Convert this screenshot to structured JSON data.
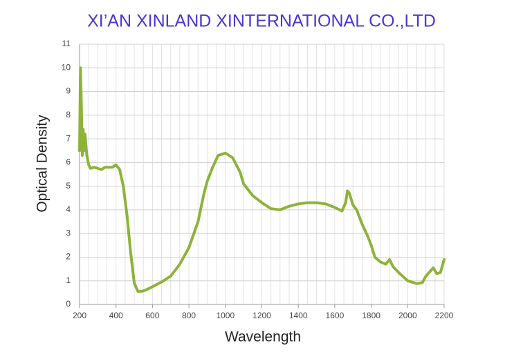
{
  "chart_data": {
    "type": "line",
    "title": "XI’AN XINLAND XINTERNATIONAL CO.,LTD",
    "x_label": "Wavelength",
    "y_label": "Optical Density",
    "x": [
      200,
      205,
      210,
      215,
      220,
      225,
      230,
      240,
      250,
      260,
      280,
      300,
      320,
      340,
      360,
      380,
      400,
      420,
      440,
      460,
      480,
      500,
      520,
      540,
      560,
      600,
      650,
      700,
      750,
      800,
      850,
      880,
      900,
      930,
      960,
      1000,
      1040,
      1080,
      1100,
      1120,
      1150,
      1200,
      1250,
      1300,
      1350,
      1400,
      1450,
      1500,
      1550,
      1600,
      1640,
      1660,
      1670,
      1680,
      1700,
      1720,
      1750,
      1780,
      1800,
      1820,
      1850,
      1880,
      1900,
      1920,
      1950,
      2000,
      2050,
      2080,
      2100,
      2140,
      2160,
      2180,
      2200
    ],
    "series": [
      {
        "name": "Optical Density",
        "color": "#8db33a",
        "values": [
          6.5,
          10.0,
          8.5,
          6.3,
          7.4,
          6.5,
          7.2,
          6.3,
          5.9,
          5.75,
          5.8,
          5.75,
          5.7,
          5.8,
          5.8,
          5.8,
          5.9,
          5.7,
          5.0,
          3.8,
          2.2,
          0.9,
          0.55,
          0.55,
          0.6,
          0.75,
          0.95,
          1.2,
          1.7,
          2.4,
          3.5,
          4.6,
          5.2,
          5.8,
          6.3,
          6.4,
          6.2,
          5.6,
          5.1,
          4.9,
          4.6,
          4.3,
          4.05,
          4.0,
          4.15,
          4.25,
          4.3,
          4.3,
          4.25,
          4.1,
          3.95,
          4.3,
          4.8,
          4.7,
          4.2,
          4.0,
          3.4,
          2.9,
          2.5,
          2.0,
          1.8,
          1.7,
          1.9,
          1.6,
          1.35,
          1.0,
          0.88,
          0.92,
          1.2,
          1.55,
          1.3,
          1.35,
          1.9
        ]
      }
    ],
    "xlim": [
      200,
      2200
    ],
    "xticks": [
      200,
      400,
      600,
      800,
      1000,
      1200,
      1400,
      1600,
      1800,
      2000,
      2200
    ],
    "xgrid": [
      200,
      250,
      300,
      350,
      400,
      450,
      500,
      550,
      600,
      650,
      700,
      750,
      800,
      850,
      900,
      950,
      1000,
      1050,
      1100,
      1150,
      1200,
      1250,
      1300,
      1350,
      1400,
      1450,
      1500,
      1550,
      1600,
      1650,
      1700,
      1750,
      1800,
      1850,
      1900,
      1950,
      2000,
      2050,
      2100,
      2150,
      2200
    ],
    "ylim": [
      0,
      11
    ],
    "yticks": [
      0,
      1,
      2,
      3,
      4,
      5,
      6,
      7,
      8,
      9,
      10,
      11
    ],
    "grid": true,
    "title_color": "#4a35d8"
  }
}
